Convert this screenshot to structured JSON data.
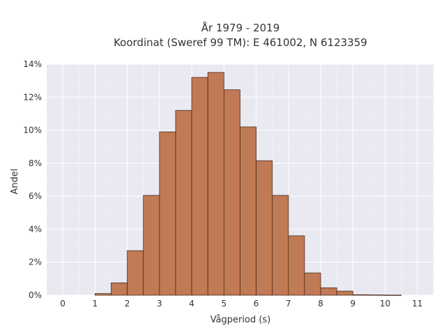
{
  "chart_data": {
    "type": "bar",
    "title_line1": "År 1979 - 2019",
    "title_line2": "Koordinat (Sweref 99 TM): E 461002, N 6123359",
    "xlabel": "Vågperiod (s)",
    "ylabel": "Andel",
    "xlim": [
      -0.5,
      11.5
    ],
    "ylim": [
      0,
      0.14
    ],
    "x_ticks": [
      0,
      1,
      2,
      3,
      4,
      5,
      6,
      7,
      8,
      9,
      10,
      11
    ],
    "y_ticks": [
      0,
      0.02,
      0.04,
      0.06,
      0.08,
      0.1,
      0.12,
      0.14
    ],
    "y_tick_labels": [
      "0%",
      "2%",
      "4%",
      "6%",
      "8%",
      "10%",
      "12%",
      "14%"
    ],
    "bin_width": 0.5,
    "bins": [
      {
        "x0": 1.0,
        "value": 0.001
      },
      {
        "x0": 1.5,
        "value": 0.0075
      },
      {
        "x0": 2.0,
        "value": 0.027
      },
      {
        "x0": 2.5,
        "value": 0.0605
      },
      {
        "x0": 3.0,
        "value": 0.099
      },
      {
        "x0": 3.5,
        "value": 0.112
      },
      {
        "x0": 4.0,
        "value": 0.132
      },
      {
        "x0": 4.5,
        "value": 0.135
      },
      {
        "x0": 5.0,
        "value": 0.1245
      },
      {
        "x0": 5.5,
        "value": 0.102
      },
      {
        "x0": 6.0,
        "value": 0.0815
      },
      {
        "x0": 6.5,
        "value": 0.0605
      },
      {
        "x0": 7.0,
        "value": 0.036
      },
      {
        "x0": 7.5,
        "value": 0.0135
      },
      {
        "x0": 8.0,
        "value": 0.0045
      },
      {
        "x0": 8.5,
        "value": 0.0025
      },
      {
        "x0": 9.0,
        "value": 0.0003
      },
      {
        "x0": 9.5,
        "value": 0.0002
      },
      {
        "x0": 10.0,
        "value": 0.0001
      }
    ],
    "colors": {
      "bar_fill": "#c07a55",
      "bar_edge": "#4a2a1a",
      "plot_bg": "#e9e9f1",
      "grid": "#ffffff"
    },
    "grid": true
  }
}
